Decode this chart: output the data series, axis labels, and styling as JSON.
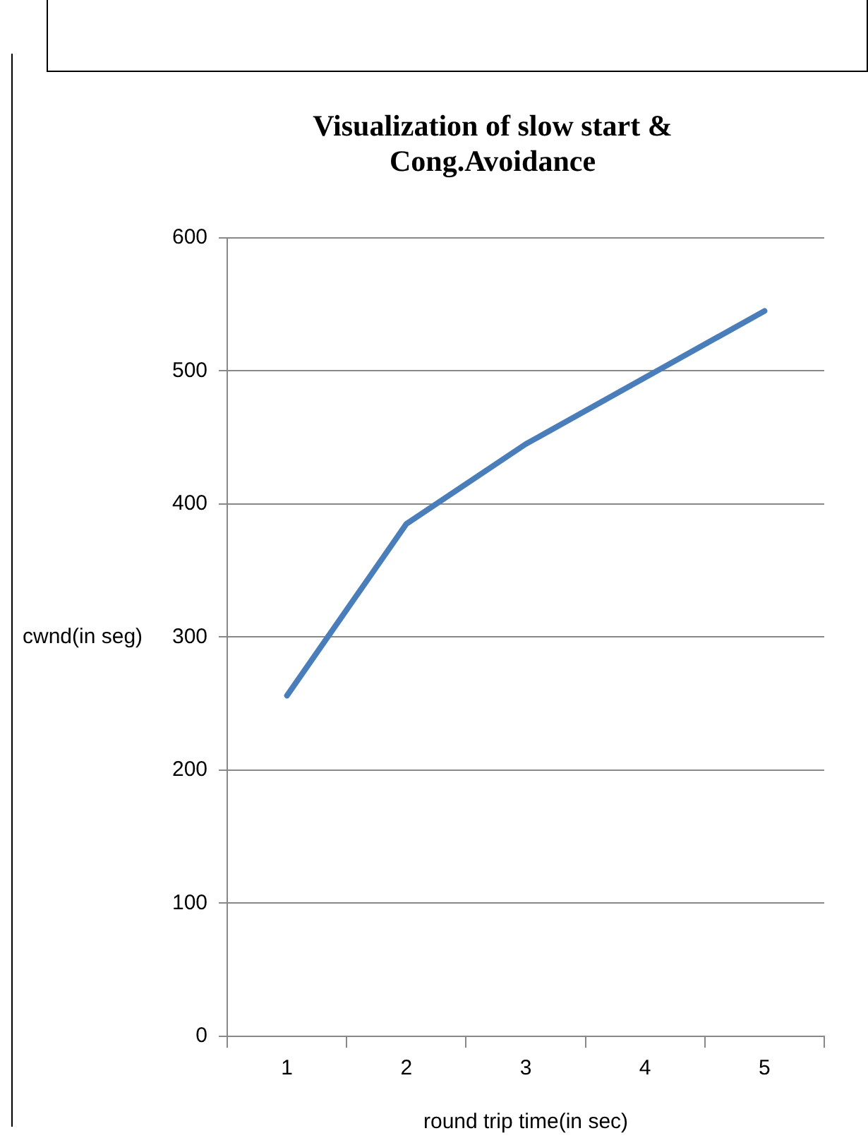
{
  "chart_data": {
    "type": "line",
    "title": [
      "Visualization of slow start &",
      "Cong.Avoidance"
    ],
    "xlabel": "round trip time(in sec)",
    "ylabel": "cwnd(in seg)",
    "categories": [
      "1",
      "2",
      "3",
      "4",
      "5"
    ],
    "series": [
      {
        "color": "#4a7ebb",
        "values": [
          256,
          385,
          445,
          495,
          545
        ]
      }
    ],
    "ylim": [
      0,
      600
    ],
    "yticks": [
      0,
      100,
      200,
      300,
      400,
      500,
      600
    ],
    "grid": "y",
    "legend": false,
    "marker": "none"
  }
}
